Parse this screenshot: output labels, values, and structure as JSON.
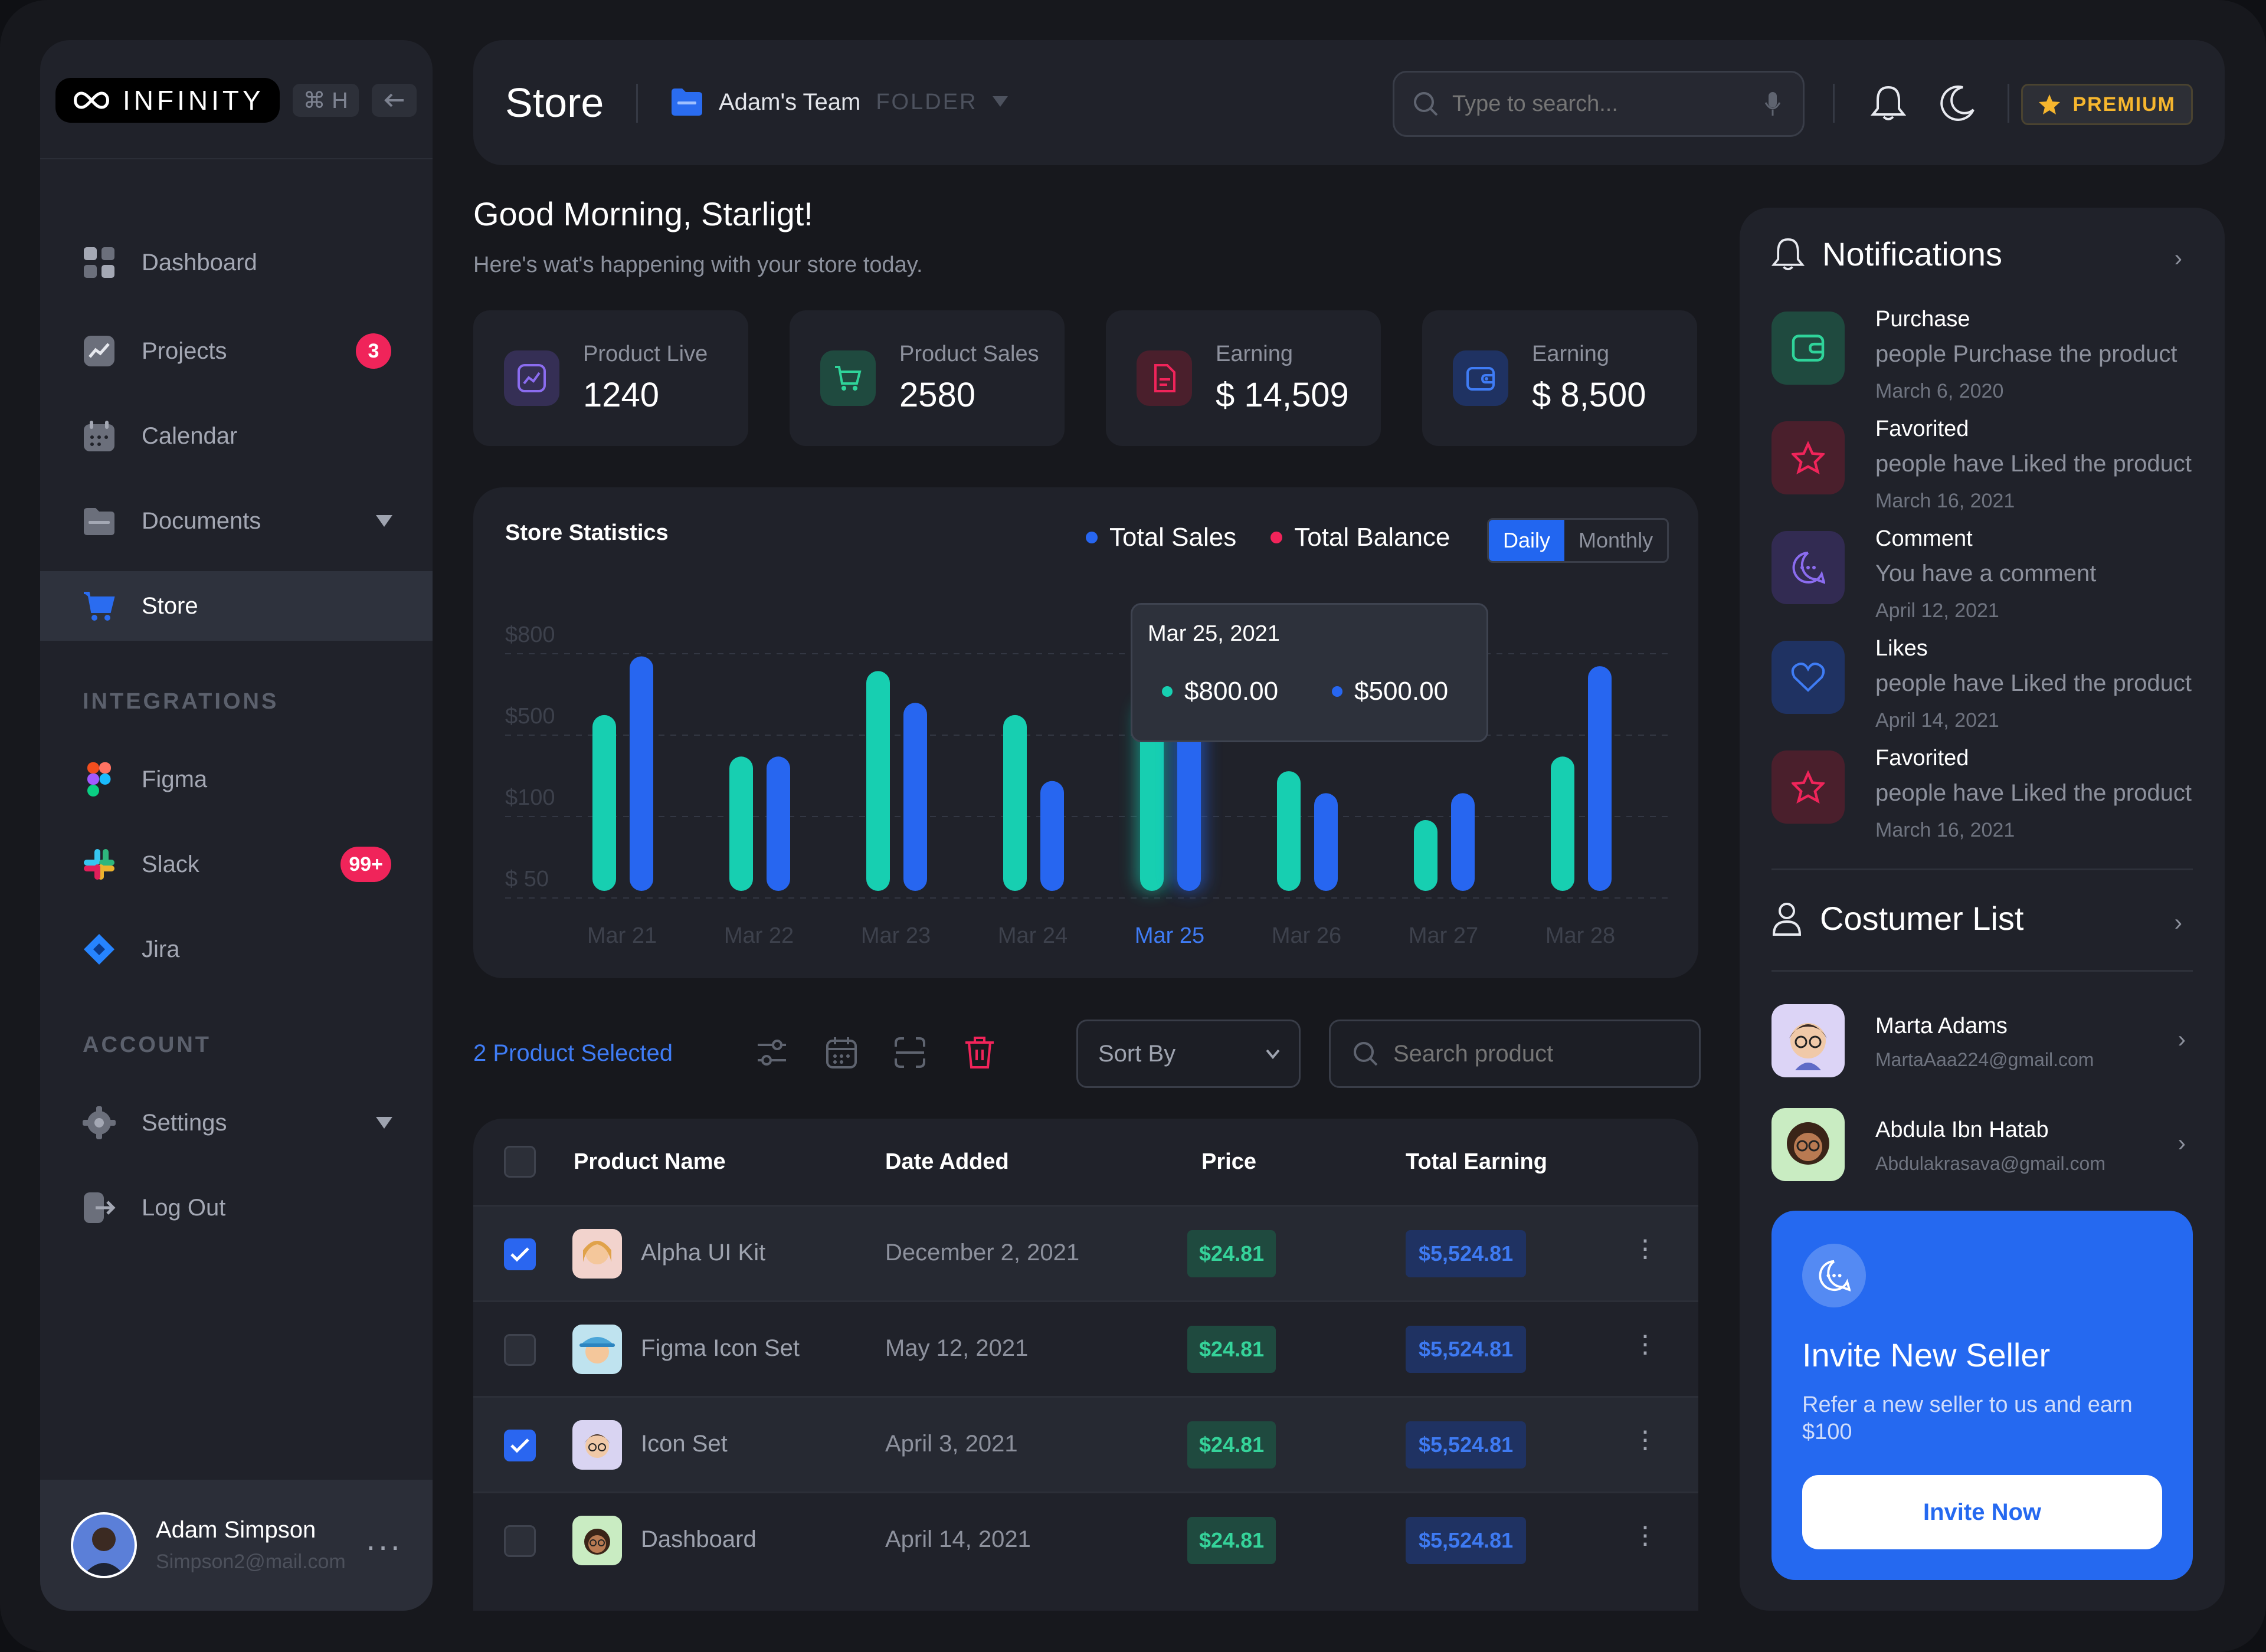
{
  "sidebar": {
    "logo_text": "INFINITY",
    "shortcut": "⌘ H",
    "collapse_icon": "arrow-left-icon",
    "nav": [
      {
        "label": "Dashboard",
        "icon": "grid-icon"
      },
      {
        "label": "Projects",
        "icon": "chart-icon",
        "badge": "3"
      },
      {
        "label": "Calendar",
        "icon": "calendar-icon"
      },
      {
        "label": "Documents",
        "icon": "folder-icon"
      },
      {
        "label": "Store",
        "icon": "cart-icon"
      }
    ],
    "integrations_label": "INTEGRATIONS",
    "integrations": [
      {
        "label": "Figma",
        "icon": "figma-icon"
      },
      {
        "label": "Slack",
        "icon": "slack-icon",
        "badge": "99+"
      },
      {
        "label": "Jira",
        "icon": "jira-icon"
      }
    ],
    "account_label": "ACCOUNT",
    "account": [
      {
        "label": "Settings",
        "icon": "gear-icon"
      },
      {
        "label": "Log Out",
        "icon": "logout-icon"
      }
    ],
    "profile": {
      "name": "Adam Simpson",
      "email": "Simpson2@mail.com"
    }
  },
  "topbar": {
    "title": "Store",
    "team": "Adam's Team",
    "folder": "FOLDER",
    "search_placeholder": "Type to search...",
    "premium": "PREMIUM"
  },
  "greeting": {
    "title": "Good Morning, Starligt!",
    "subtitle": "Here's wat's happening with your store today."
  },
  "stats": [
    {
      "label": "Product Live",
      "value": "1240",
      "icon": "chart-square-icon",
      "color": "#8b6cf0"
    },
    {
      "label": "Product Sales",
      "value": "2580",
      "icon": "cart-icon",
      "color": "#2fd49a"
    },
    {
      "label": "Earning",
      "value": "$ 14,509",
      "icon": "document-icon",
      "color": "#f0245a"
    },
    {
      "label": "Earning",
      "value": "$ 8,500",
      "icon": "wallet-icon",
      "color": "#3f7cf5"
    }
  ],
  "chart": {
    "title": "Store Statistics",
    "legend": [
      "Total Sales",
      "Total Balance"
    ],
    "toggle": [
      "Daily",
      "Monthly"
    ],
    "tooltip": {
      "date": "Mar 25, 2021",
      "v1": "$800.00",
      "v2": "$500.00"
    }
  },
  "chart_data": {
    "type": "bar",
    "categories": [
      "Mar 21",
      "Mar 22",
      "Mar 23",
      "Mar 24",
      "Mar 25",
      "Mar 26",
      "Mar 27",
      "Mar 28"
    ],
    "y_ticks": [
      "$800",
      "$500",
      "$100",
      "$ 50"
    ],
    "highlight": "Mar 25",
    "series": [
      {
        "name": "Total Sales",
        "color": "#17cfb1",
        "values": [
          0.72,
          0.55,
          0.9,
          0.72,
          0.77,
          0.49,
          0.29,
          0.55
        ]
      },
      {
        "name": "Total Balance",
        "color": "#2766f0",
        "values": [
          0.96,
          0.55,
          0.77,
          0.45,
          0.7,
          0.4,
          0.4,
          0.92
        ]
      }
    ]
  },
  "toolbar": {
    "selected": "2 Product Selected",
    "sort": "Sort By",
    "search_placeholder": "Search product"
  },
  "table": {
    "headers": [
      "Product Name",
      "Date Added",
      "Price",
      "Total Earning"
    ],
    "rows": [
      {
        "name": "Alpha UI Kit",
        "date": "December 2, 2021",
        "price": "$24.81",
        "earning": "$5,524.81",
        "checked": true
      },
      {
        "name": "Figma Icon Set",
        "date": "May 12, 2021",
        "price": "$24.81",
        "earning": "$5,524.81",
        "checked": false
      },
      {
        "name": "Icon Set",
        "date": "April 3, 2021",
        "price": "$24.81",
        "earning": "$5,524.81",
        "checked": true
      },
      {
        "name": "Dashboard",
        "date": "April 14, 2021",
        "price": "$24.81",
        "earning": "$5,524.81",
        "checked": false
      }
    ]
  },
  "notifications": {
    "title": "Notifications",
    "items": [
      {
        "title": "Purchase",
        "desc": "people Purchase the product",
        "date": "March 6, 2020",
        "icon": "wallet-icon",
        "color": "#1f4a3f"
      },
      {
        "title": "Favorited",
        "desc": "people have Liked the product",
        "date": "March 16, 2021",
        "icon": "star-icon",
        "color": "#4a1f2c"
      },
      {
        "title": "Comment",
        "desc": "You have a comment",
        "date": "April 12, 2021",
        "icon": "comment-icon",
        "color": "#322b52"
      },
      {
        "title": "Likes",
        "desc": "people have Liked the product",
        "date": "April 14, 2021",
        "icon": "heart-icon",
        "color": "#1f3262"
      },
      {
        "title": "Favorited",
        "desc": "people have Liked the product",
        "date": "March 16, 2021",
        "icon": "star-icon",
        "color": "#4a1f2c"
      }
    ]
  },
  "customers": {
    "title": "Costumer List",
    "items": [
      {
        "name": "Marta Adams",
        "email": "MartaAaa224@gmail.com"
      },
      {
        "name": "Abdula Ibn Hatab",
        "email": "Abdulakrasava@gmail.com"
      }
    ]
  },
  "invite": {
    "title": "Invite New Seller",
    "desc": "Refer a new seller to us and earn $100",
    "button": "Invite Now"
  }
}
